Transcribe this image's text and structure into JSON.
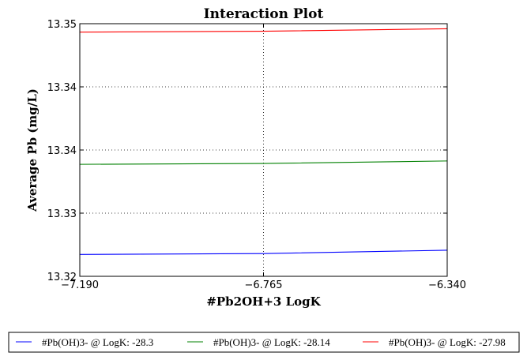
{
  "chart_data": {
    "type": "line",
    "title": "Interaction Plot",
    "xlabel": "#Pb2OH+3 LogK",
    "ylabel": "Average Pb (mg/L)",
    "x": [
      -7.19,
      -6.765,
      -6.34
    ],
    "x_tick_labels": [
      "−7.190",
      "−6.765",
      "−6.340"
    ],
    "xlim": [
      -7.19,
      -6.34
    ],
    "ylim": [
      13.32,
      13.35
    ],
    "y_ticks": [
      13.32,
      13.3275,
      13.335,
      13.3425,
      13.35
    ],
    "y_tick_labels": [
      "13.32",
      "13.33",
      "13.34",
      "13.34",
      "13.35"
    ],
    "grid": true,
    "legend_position": "bottom",
    "series": [
      {
        "name": "#Pb(OH)3- @ LogK: -28.3",
        "color": "#0000ff",
        "values": [
          13.3226,
          13.3227,
          13.3231
        ]
      },
      {
        "name": "#Pb(OH)3- @ LogK: -28.14",
        "color": "#008000",
        "values": [
          13.3333,
          13.3334,
          13.3337
        ]
      },
      {
        "name": "#Pb(OH)3- @ LogK: -27.98",
        "color": "#ff0000",
        "values": [
          13.349,
          13.3491,
          13.3494
        ]
      }
    ]
  }
}
